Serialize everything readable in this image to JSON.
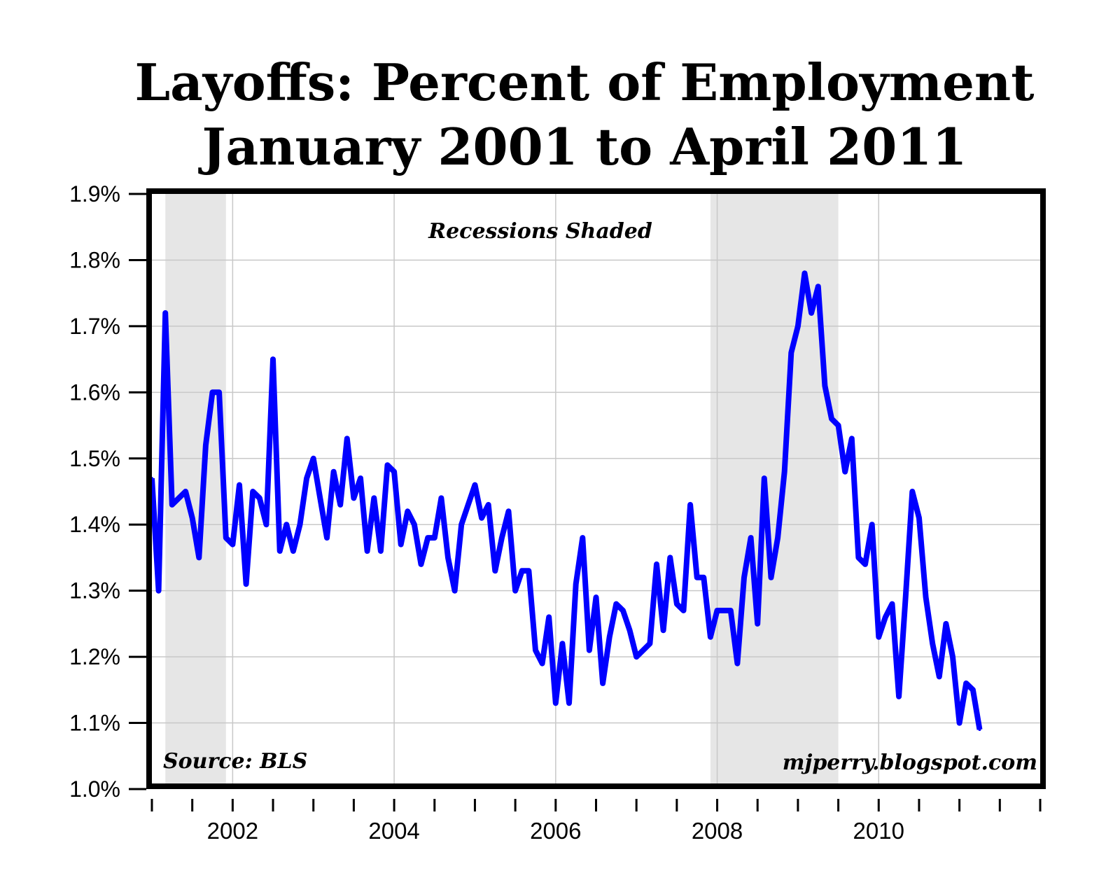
{
  "chart_data": {
    "type": "line",
    "title": "Layoffs: Percent of Employment",
    "subtitle": "January 2001 to April 2011",
    "xlabel": "",
    "ylabel": "",
    "ylim": [
      1.0,
      1.9
    ],
    "xlim": [
      "2001-01",
      "2011-12"
    ],
    "y_ticks": [
      1.0,
      1.1,
      1.2,
      1.3,
      1.4,
      1.5,
      1.6,
      1.7,
      1.8,
      1.9
    ],
    "y_tick_labels": [
      "1.0%",
      "1.1%",
      "1.2%",
      "1.3%",
      "1.4%",
      "1.5%",
      "1.6%",
      "1.7%",
      "1.8%",
      "1.9%"
    ],
    "x_tick_labels": [
      "2002",
      "2004",
      "2006",
      "2008",
      "2010"
    ],
    "grid": true,
    "line_color": "#0000ff",
    "recession_color": "#e6e6e6",
    "recessions": [
      {
        "start": "2001-03",
        "end": "2001-11"
      },
      {
        "start": "2007-12",
        "end": "2009-06"
      }
    ],
    "annotations": {
      "recessions_label": "Recessions Shaded",
      "source": "Source: BLS",
      "credit": "mjperry.blogspot.com"
    },
    "series": [
      {
        "start": "2001-01",
        "values": [
          1.47,
          1.3,
          1.72,
          1.43,
          1.44,
          1.45,
          1.41,
          1.35,
          1.52,
          1.6,
          1.6,
          1.38,
          1.37,
          1.46,
          1.31,
          1.45,
          1.44,
          1.4,
          1.65,
          1.36,
          1.4,
          1.36,
          1.4,
          1.47,
          1.5,
          1.44,
          1.38,
          1.48,
          1.43,
          1.53,
          1.44,
          1.47,
          1.36,
          1.44,
          1.36,
          1.49,
          1.48,
          1.37,
          1.42,
          1.4,
          1.34,
          1.38,
          1.38,
          1.44,
          1.35,
          1.3,
          1.4,
          1.43,
          1.46,
          1.41,
          1.43,
          1.33,
          1.38,
          1.42,
          1.3,
          1.33,
          1.33,
          1.21,
          1.19,
          1.26,
          1.13,
          1.22,
          1.13,
          1.31,
          1.38,
          1.21,
          1.29,
          1.16,
          1.23,
          1.28,
          1.27,
          1.24,
          1.2,
          1.21,
          1.22,
          1.34,
          1.24,
          1.35,
          1.28,
          1.27,
          1.43,
          1.32,
          1.32,
          1.23,
          1.27,
          1.27,
          1.27,
          1.19,
          1.32,
          1.38,
          1.25,
          1.47,
          1.32,
          1.38,
          1.48,
          1.66,
          1.7,
          1.78,
          1.72,
          1.76,
          1.61,
          1.56,
          1.55,
          1.48,
          1.53,
          1.35,
          1.34,
          1.4,
          1.23,
          1.26,
          1.28,
          1.14,
          1.29,
          1.45,
          1.41,
          1.29,
          1.22,
          1.17,
          1.25,
          1.2,
          1.1,
          1.16,
          1.15,
          1.09
        ]
      }
    ]
  }
}
